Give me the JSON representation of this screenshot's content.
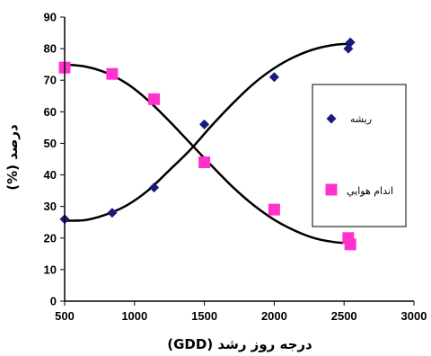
{
  "chart_data": {
    "type": "scatter",
    "xlabel": "درجه روز رشد (GDD)",
    "ylabel": "درصد (%)",
    "xlim": [
      500,
      3000
    ],
    "ylim": [
      0,
      90
    ],
    "xticks": [
      500,
      1000,
      1500,
      2000,
      2500,
      3000
    ],
    "yticks": [
      0,
      10,
      20,
      30,
      40,
      50,
      60,
      70,
      80,
      90
    ],
    "grid": false,
    "legend_position": "right",
    "series": [
      {
        "name": "ريشه",
        "color": "#1a1a80",
        "marker": "diamond",
        "points": [
          [
            500,
            26
          ],
          [
            840,
            28
          ],
          [
            1140,
            36
          ],
          [
            1500,
            56
          ],
          [
            2000,
            71
          ],
          [
            2530,
            80
          ],
          [
            2545,
            82
          ]
        ],
        "trend": [
          [
            500,
            25.5
          ],
          [
            650,
            25.7
          ],
          [
            800,
            27.5
          ],
          [
            950,
            30.5
          ],
          [
            1100,
            35.2
          ],
          [
            1250,
            41.5
          ],
          [
            1400,
            48
          ],
          [
            1550,
            55.5
          ],
          [
            1700,
            62.5
          ],
          [
            1850,
            68.8
          ],
          [
            2000,
            73.8
          ],
          [
            2150,
            77.5
          ],
          [
            2300,
            80
          ],
          [
            2450,
            81.3
          ],
          [
            2540,
            81.5
          ]
        ]
      },
      {
        "name": "اندام هوايي",
        "color": "#ff33cc",
        "marker": "square",
        "points": [
          [
            500,
            74
          ],
          [
            840,
            72
          ],
          [
            1140,
            64
          ],
          [
            1500,
            44
          ],
          [
            2000,
            29
          ],
          [
            2530,
            20
          ],
          [
            2545,
            18
          ]
        ],
        "trend": [
          [
            500,
            75
          ],
          [
            650,
            74.3
          ],
          [
            800,
            72.3
          ],
          [
            950,
            68.8
          ],
          [
            1100,
            63.5
          ],
          [
            1250,
            57
          ],
          [
            1400,
            50
          ],
          [
            1550,
            43
          ],
          [
            1700,
            36.3
          ],
          [
            1850,
            30.5
          ],
          [
            2000,
            25.8
          ],
          [
            2150,
            22.3
          ],
          [
            2300,
            19.8
          ],
          [
            2450,
            18.6
          ],
          [
            2540,
            18.5
          ]
        ]
      }
    ]
  }
}
